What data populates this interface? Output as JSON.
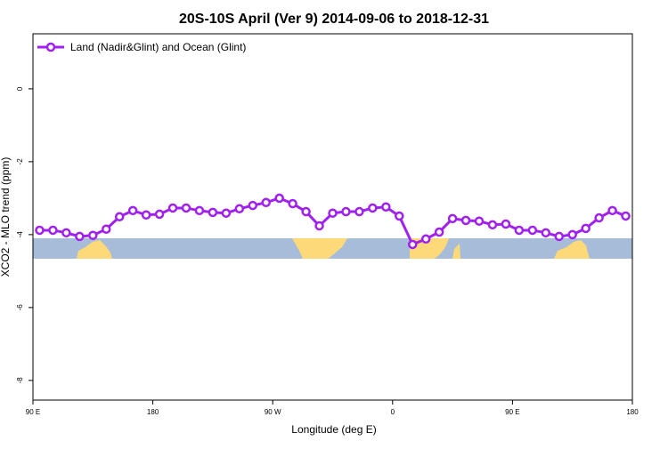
{
  "chart_data": {
    "type": "line",
    "title": "20S-10S April (Ver 9)   2014-09-06 to 2018-12-31",
    "x_label": "Longitude (deg E)",
    "y_label": "XCO2 - MLO trend (ppm)",
    "x": [
      95,
      105,
      115,
      125,
      135,
      145,
      155,
      165,
      175,
      185,
      195,
      205,
      215,
      225,
      235,
      245,
      255,
      265,
      275,
      285,
      295,
      305,
      315,
      325,
      335,
      345,
      355,
      365,
      375,
      385,
      395,
      405,
      415,
      425,
      435,
      445,
      455,
      465,
      475,
      485,
      495,
      505,
      515,
      525,
      535
    ],
    "series": [
      {
        "name": "Land (Nadir&Glint) and Ocean (Glint)",
        "color": "#a020f0",
        "values": [
          -3.88,
          -3.88,
          -3.95,
          -4.05,
          -4.02,
          -3.85,
          -3.51,
          -3.34,
          -3.46,
          -3.44,
          -3.27,
          -3.27,
          -3.34,
          -3.39,
          -3.41,
          -3.29,
          -3.2,
          -3.12,
          -3.0,
          -3.15,
          -3.37,
          -3.76,
          -3.41,
          -3.37,
          -3.37,
          -3.27,
          -3.24,
          -3.49,
          -4.27,
          -4.12,
          -3.93,
          -3.56,
          -3.61,
          -3.63,
          -3.73,
          -3.71,
          -3.88,
          -3.88,
          -3.95,
          -4.05,
          -4.0,
          -3.83,
          -3.54,
          -3.34,
          -3.49
        ]
      }
    ],
    "xlim": [
      90,
      540
    ],
    "xticks": [
      {
        "value": 90,
        "label": "90 E"
      },
      180,
      {
        "value": 270,
        "label": "90 W"
      },
      {
        "value": 360,
        "label": "0"
      },
      {
        "value": 450,
        "label": "90 E"
      },
      {
        "value": 540,
        "label": "180"
      }
    ],
    "ylim": [
      -8.54,
      1.51
    ],
    "yticks": [
      0,
      -2,
      -4,
      -6,
      -8
    ],
    "legend": "top-left"
  }
}
